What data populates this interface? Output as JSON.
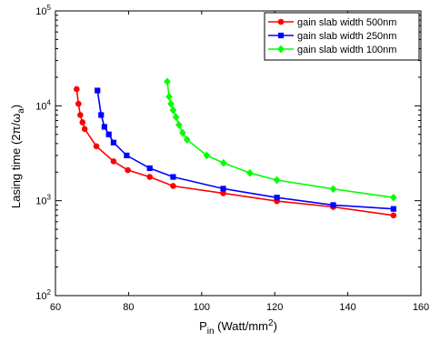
{
  "chart_data": {
    "type": "line",
    "title": "",
    "xlabel": "P_in (Watt/mm^2)",
    "xlabel_main": "P",
    "xlabel_sub": "in",
    "xlabel_rest": " (Watt/mm",
    "xlabel_sup": "2",
    "xlabel_close": ")",
    "ylabel": "Lasing time (2π/ω_a)",
    "ylabel_main": "Lasing time (2π/ω",
    "ylabel_sub": "a",
    "ylabel_close": ")",
    "xlim": [
      60,
      160
    ],
    "ylim": [
      100,
      100000
    ],
    "yscale": "log",
    "grid": false,
    "legend_position": "top-right",
    "x_ticks": [
      {
        "value": 60,
        "label": "60"
      },
      {
        "value": 80,
        "label": "80"
      },
      {
        "value": 100,
        "label": "100"
      },
      {
        "value": 120,
        "label": "120"
      },
      {
        "value": 140,
        "label": "140"
      },
      {
        "value": 160,
        "label": "160"
      }
    ],
    "y_ticks": [
      {
        "value": 100,
        "base": "10",
        "exp": "2"
      },
      {
        "value": 1000,
        "base": "10",
        "exp": "3"
      },
      {
        "value": 10000,
        "base": "10",
        "exp": "4"
      },
      {
        "value": 100000,
        "base": "10",
        "exp": "5"
      }
    ],
    "series": [
      {
        "name": "gain slab width 500nm",
        "color": "#ff0000",
        "marker": "circle",
        "points": [
          [
            65.8,
            15000
          ],
          [
            66.3,
            10500
          ],
          [
            66.8,
            8000
          ],
          [
            67.4,
            6700
          ],
          [
            68.0,
            5700
          ],
          [
            71.2,
            3750
          ],
          [
            75.9,
            2600
          ],
          [
            79.8,
            2100
          ],
          [
            85.8,
            1780
          ],
          [
            92.2,
            1430
          ],
          [
            105.9,
            1200
          ],
          [
            120.6,
            990
          ],
          [
            136.0,
            860
          ],
          [
            152.5,
            700
          ]
        ]
      },
      {
        "name": "gain slab width 250nm",
        "color": "#0000ff",
        "marker": "square",
        "points": [
          [
            71.5,
            14500
          ],
          [
            72.5,
            8000
          ],
          [
            73.4,
            6000
          ],
          [
            74.6,
            5000
          ],
          [
            75.9,
            4100
          ],
          [
            79.5,
            3000
          ],
          [
            85.8,
            2200
          ],
          [
            92.2,
            1780
          ],
          [
            105.9,
            1340
          ],
          [
            120.6,
            1080
          ],
          [
            136.0,
            900
          ],
          [
            152.5,
            820
          ]
        ]
      },
      {
        "name": "gain slab width 100nm",
        "color": "#00ff00",
        "marker": "diamond",
        "points": [
          [
            90.6,
            18000
          ],
          [
            91.1,
            12500
          ],
          [
            91.6,
            10500
          ],
          [
            92.2,
            9000
          ],
          [
            93.0,
            7600
          ],
          [
            93.8,
            6300
          ],
          [
            94.8,
            5200
          ],
          [
            96.0,
            4400
          ],
          [
            101.4,
            3000
          ],
          [
            106.0,
            2500
          ],
          [
            113.2,
            1960
          ],
          [
            120.6,
            1650
          ],
          [
            136.0,
            1330
          ],
          [
            152.5,
            1080
          ]
        ]
      }
    ]
  }
}
